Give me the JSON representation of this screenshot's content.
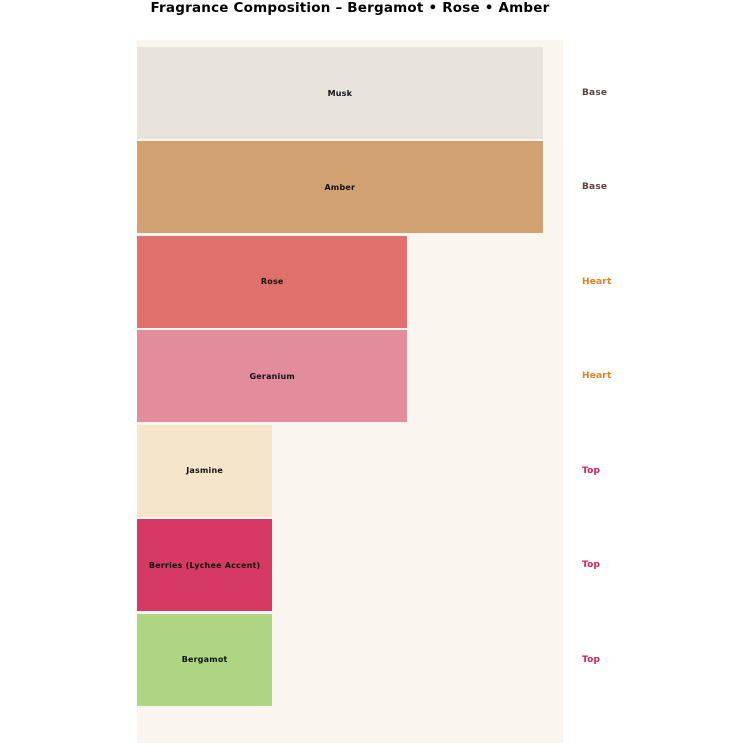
{
  "title": "Fragrance Composition – Bergamot • Rose • Amber",
  "chart_data": {
    "type": "bar",
    "orientation": "horizontal",
    "title": "Fragrance Composition – Bergamot • Rose • Amber",
    "xlabel": "",
    "ylabel": "",
    "xlim": [
      0,
      31.5
    ],
    "grid": false,
    "axes_visible": false,
    "plot_bg_color": "#faf5ee",
    "page_bg_color": "#ffffff",
    "categories": [
      "Musk",
      "Amber",
      "Rose",
      "Geranium",
      "Jasmine",
      "Berries (Lychee Accent)",
      "Bergamot"
    ],
    "values": [
      30,
      30,
      20,
      20,
      10,
      10,
      10
    ],
    "bar_colors": [
      "#e8e4dd",
      "#d2a171",
      "#e0706c",
      "#e28c9c",
      "#f6e6c9",
      "#d63a64",
      "#aed581"
    ],
    "bar_label_color": "#111111",
    "groups": [
      "Base",
      "Base",
      "Heart",
      "Heart",
      "Top",
      "Top",
      "Top"
    ],
    "group_label_colors": {
      "Base": "#5d4037",
      "Heart": "#ef7d1a",
      "Top": "#d81b60"
    },
    "group_label_position": "right-of-plot"
  }
}
